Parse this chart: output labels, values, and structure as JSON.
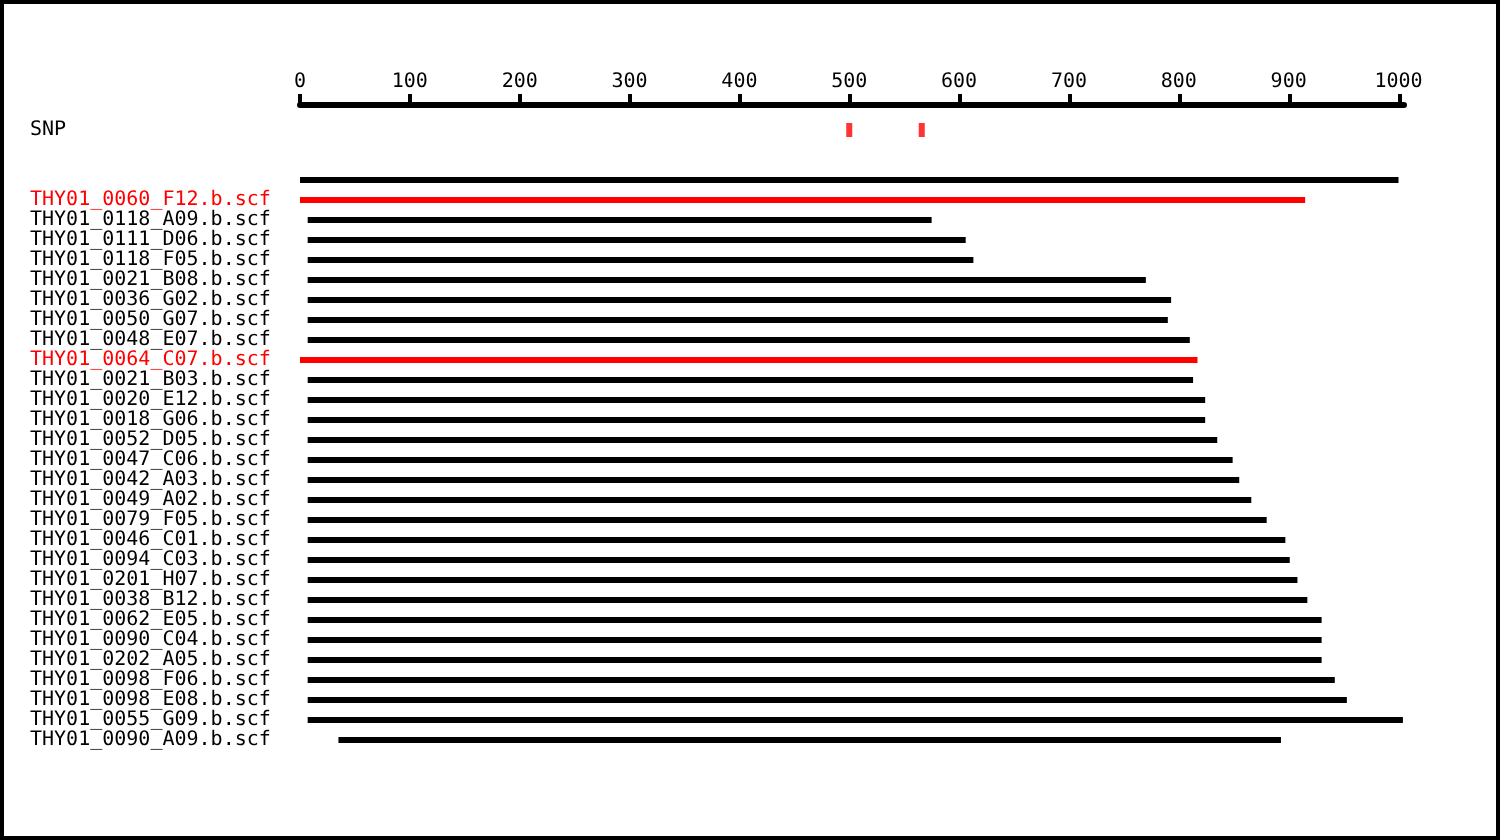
{
  "chart_data": {
    "type": "bar",
    "orientation": "horizontal",
    "categories": [
      "SNP",
      null,
      "THY01_0060_F12.b.scf",
      "THY01_0118_A09.b.scf",
      "THY01_0111_D06.b.scf",
      "THY01_0118_F05.b.scf",
      "THY01_0021_B08.b.scf",
      "THY01_0036_G02.b.scf",
      "THY01_0050_G07.b.scf",
      "THY01_0048_E07.b.scf",
      "THY01_0064_C07.b.scf",
      "THY01_0021_B03.b.scf",
      "THY01_0020_E12.b.scf",
      "THY01_0018_G06.b.scf",
      "THY01_0052_D05.b.scf",
      "THY01_0047_C06.b.scf",
      "THY01_0042_A03.b.scf",
      "THY01_0049_A02.b.scf",
      "THY01_0079_F05.b.scf",
      "THY01_0046_C01.b.scf",
      "THY01_0094_C03.b.scf",
      "THY01_0201_H07.b.scf",
      "THY01_0038_B12.b.scf",
      "THY01_0062_E05.b.scf",
      "THY01_0090_C04.b.scf",
      "THY01_0202_A05.b.scf",
      "THY01_0098_F06.b.scf",
      "THY01_0098_E08.b.scf",
      "THY01_0055_G09.b.scf",
      "THY01_0090_A09.b.scf"
    ],
    "series": [
      {
        "base": [
          null,
          0,
          0,
          7,
          7,
          7,
          7,
          7,
          7,
          7,
          0,
          7,
          7,
          7,
          7,
          7,
          7,
          7,
          7,
          7,
          7,
          7,
          7,
          7,
          7,
          7,
          7,
          7,
          7,
          35
        ],
        "values": [
          null,
          1000,
          915,
          568,
          599,
          606,
          763,
          786,
          783,
          803,
          817,
          806,
          817,
          817,
          828,
          842,
          848,
          859,
          873,
          890,
          894,
          901,
          910,
          923,
          923,
          923,
          935,
          946,
          997,
          858
        ],
        "colors": [
          null,
          "#000000",
          "#ff0000",
          "#000000",
          "#000000",
          "#000000",
          "#000000",
          "#000000",
          "#000000",
          "#000000",
          "#ff0000",
          "#000000",
          "#000000",
          "#000000",
          "#000000",
          "#000000",
          "#000000",
          "#000000",
          "#000000",
          "#000000",
          "#000000",
          "#000000",
          "#000000",
          "#000000",
          "#000000",
          "#000000",
          "#000000",
          "#000000",
          "#000000",
          "#000000"
        ]
      },
      {
        "type": "scatter",
        "x": [
          "SNP",
          "SNP"
        ],
        "values": [
          500,
          566
        ],
        "color": "#ff0000",
        "marker": "square"
      }
    ],
    "xlim": [
      0,
      1005
    ],
    "xticks": [
      0,
      100,
      200,
      300,
      400,
      500,
      600,
      700,
      800,
      900,
      1000
    ]
  }
}
